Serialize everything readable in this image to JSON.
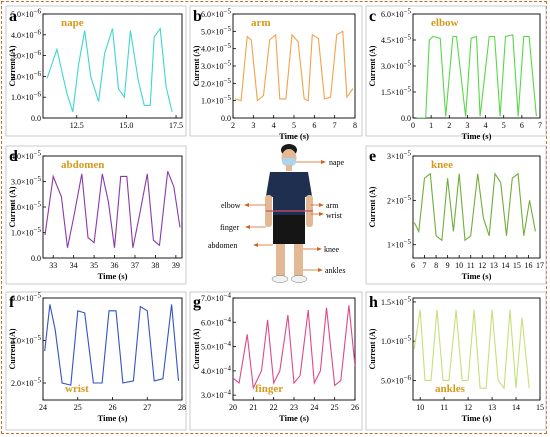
{
  "chart_data": [
    {
      "type": "line",
      "panel": "a",
      "title": "nape",
      "color": "#3fd6d2",
      "xlabel": "",
      "ylabel": "Current (A)",
      "xlim": [
        10.8,
        17.8
      ],
      "ylim": [
        0,
        5e-06
      ],
      "xticks": [
        "12.5",
        "15.0",
        "17.5"
      ],
      "xtickvals": [
        12.5,
        15.0,
        17.5
      ],
      "yticks": [
        "0.0",
        "1.0x10-6",
        "2.0x10-6",
        "3.0x10-6",
        "4.0x10-6",
        "5.0x10-6"
      ],
      "ytickvals": [
        0,
        1e-06,
        2e-06,
        3e-06,
        4e-06,
        5e-06
      ],
      "x": [
        11.0,
        11.5,
        12.0,
        12.3,
        12.6,
        12.9,
        13.2,
        13.6,
        13.9,
        14.3,
        14.6,
        14.9,
        15.2,
        15.6,
        15.9,
        16.2,
        16.4,
        16.7,
        17.0,
        17.3
      ],
      "y": [
        1.9e-06,
        3.3e-06,
        1.2e-06,
        3e-07,
        2.6e-06,
        4.2e-06,
        2e-06,
        8e-07,
        3.1e-06,
        4.3e-06,
        1.4e-06,
        1e-06,
        4.2e-06,
        1.8e-06,
        6e-07,
        6e-07,
        3.9e-06,
        4.3e-06,
        1.5e-06,
        3e-07
      ]
    },
    {
      "type": "line",
      "panel": "b",
      "title": "arm",
      "color": "#f2a24a",
      "xlabel": "Time (s)",
      "ylabel": "Current (A)",
      "xlim": [
        2,
        8
      ],
      "ylim": [
        0,
        6e-05
      ],
      "xticks": [
        "2",
        "3",
        "4",
        "5",
        "6",
        "7",
        "8"
      ],
      "xtickvals": [
        2,
        3,
        4,
        5,
        6,
        7,
        8
      ],
      "yticks": [
        "0.0",
        "1.0x10-5",
        "2.0x10-5",
        "3.0x10-5",
        "4.0x10-5",
        "5.0x10-5",
        "6.0x10-5"
      ],
      "ytickvals": [
        0,
        1e-05,
        2e-05,
        3e-05,
        4e-05,
        5e-05,
        6e-05
      ],
      "x": [
        2.1,
        2.4,
        2.7,
        2.9,
        3.2,
        3.5,
        3.8,
        4.1,
        4.3,
        4.6,
        4.9,
        5.2,
        5.5,
        5.7,
        5.9,
        6.2,
        6.5,
        6.8,
        7.1,
        7.4,
        7.6,
        7.9
      ],
      "y": [
        1.1e-05,
        1e-05,
        4.7e-05,
        4.5e-05,
        1e-05,
        1.3e-05,
        4.5e-05,
        4.8e-05,
        1.1e-05,
        1.1e-05,
        4.8e-05,
        4.4e-05,
        1.1e-05,
        1e-05,
        4.8e-05,
        4.6e-05,
        1.1e-05,
        1.2e-05,
        4.8e-05,
        5e-05,
        1.2e-05,
        1.7e-05
      ]
    },
    {
      "type": "line",
      "panel": "c",
      "title": "elbow",
      "color": "#58d848",
      "xlabel": "Time (s)",
      "ylabel": "Current (A)",
      "xlim": [
        0,
        7
      ],
      "ylim": [
        0,
        6e-05
      ],
      "xticks": [
        "0",
        "1",
        "2",
        "3",
        "4",
        "5",
        "6",
        "7"
      ],
      "xtickvals": [
        0,
        1,
        2,
        3,
        4,
        5,
        6,
        7
      ],
      "yticks": [
        "0.0",
        "1.5x10-5",
        "3.0x10-5",
        "4.5x10-5",
        "6.0x10-5"
      ],
      "ytickvals": [
        0,
        1.5e-05,
        3e-05,
        4.5e-05,
        6e-05
      ],
      "x": [
        0.2,
        0.7,
        0.9,
        1.1,
        1.5,
        1.8,
        2.2,
        2.4,
        2.9,
        3.2,
        3.5,
        3.7,
        4.2,
        4.5,
        4.8,
        5.1,
        5.5,
        5.8,
        6.1,
        6.4,
        6.8
      ],
      "y": [
        0,
        0,
        4.5e-05,
        4.7e-05,
        4.6e-05,
        1e-06,
        4.7e-05,
        4.7e-05,
        1e-06,
        4.6e-05,
        4.7e-05,
        1e-06,
        4.7e-05,
        4.7e-05,
        1e-06,
        4.7e-05,
        4.8e-05,
        1e-06,
        4.7e-05,
        4.7e-05,
        1e-06
      ]
    },
    {
      "type": "line",
      "panel": "d",
      "title": "abdomen",
      "color": "#8a3aa8",
      "xlabel": "Time (s)",
      "ylabel": "Current (A)",
      "xlim": [
        32.5,
        39.3
      ],
      "ylim": [
        0,
        4e-05
      ],
      "xticks": [
        "33",
        "34",
        "35",
        "36",
        "37",
        "38",
        "39"
      ],
      "xtickvals": [
        33,
        34,
        35,
        36,
        37,
        38,
        39
      ],
      "yticks": [
        "0.0",
        "1.0x10-5",
        "2.0x10-5",
        "3.0x10-5",
        "4.0x10-5"
      ],
      "ytickvals": [
        0,
        1e-05,
        2e-05,
        3e-05,
        4e-05
      ],
      "x": [
        32.6,
        33.0,
        33.4,
        33.7,
        34.0,
        34.4,
        34.7,
        35.0,
        35.4,
        35.7,
        36.0,
        36.3,
        36.6,
        36.9,
        37.2,
        37.6,
        37.9,
        38.2,
        38.6,
        38.9,
        39.2
      ],
      "y": [
        9e-06,
        3.2e-05,
        2.4e-05,
        4e-06,
        1.6e-05,
        3.3e-05,
        8e-06,
        6e-06,
        3.3e-05,
        2.2e-05,
        4e-06,
        3.2e-05,
        3.2e-05,
        4e-06,
        1.6e-05,
        3.3e-05,
        7e-06,
        5e-06,
        3.4e-05,
        2.8e-05,
        1.2e-05
      ]
    },
    {
      "type": "line",
      "panel": "e",
      "title": "knee",
      "color": "#6fae3a",
      "xlabel": "Time (s)",
      "ylabel": "Current (A)",
      "xlim": [
        6,
        17
      ],
      "ylim": [
        7e-06,
        3e-05
      ],
      "xticks": [
        "6",
        "7",
        "8",
        "9",
        "10",
        "11",
        "12",
        "13",
        "14",
        "15",
        "16",
        "17"
      ],
      "xtickvals": [
        6,
        7,
        8,
        9,
        10,
        11,
        12,
        13,
        14,
        15,
        16,
        17
      ],
      "yticks": [
        "1x10-5",
        "2x10-5",
        "3x10-5"
      ],
      "ytickvals": [
        1e-05,
        2e-05,
        3e-05
      ],
      "x": [
        6.1,
        6.5,
        7.0,
        7.5,
        8.0,
        8.5,
        9.0,
        9.5,
        10.0,
        10.5,
        11.0,
        11.6,
        12.1,
        12.6,
        13.1,
        13.6,
        14.1,
        14.6,
        15.1,
        15.6,
        16.1,
        16.6
      ],
      "y": [
        1.5e-05,
        1.3e-05,
        2.5e-05,
        2.6e-05,
        1.2e-05,
        1.1e-05,
        2.5e-05,
        1.3e-05,
        2.6e-05,
        1.1e-05,
        1.2e-05,
        2.6e-05,
        1.6e-05,
        1.2e-05,
        2.6e-05,
        2.4e-05,
        1.2e-05,
        2.5e-05,
        2.6e-05,
        1.2e-05,
        2e-05,
        1.3e-05
      ]
    },
    {
      "type": "line",
      "panel": "f",
      "title": "wrist",
      "color": "#3452c8",
      "xlabel": "Time (s)",
      "ylabel": "Current (A)",
      "xlim": [
        24,
        28
      ],
      "ylim": [
        1.2e-05,
        6e-05
      ],
      "xticks": [
        "24",
        "25",
        "26",
        "27",
        "28"
      ],
      "xtickvals": [
        24,
        25,
        26,
        27,
        28
      ],
      "yticks": [
        "2.0x10-5",
        "4.0x10-5",
        "6.0x10-5"
      ],
      "ytickvals": [
        2e-05,
        4e-05,
        6e-05
      ],
      "x": [
        24.05,
        24.2,
        24.35,
        24.55,
        24.8,
        25.0,
        25.2,
        25.45,
        25.7,
        25.9,
        26.1,
        26.3,
        26.6,
        26.8,
        27.0,
        27.2,
        27.45,
        27.7,
        27.9
      ],
      "y": [
        3.5e-05,
        5.7e-05,
        4.5e-05,
        2e-05,
        1.9e-05,
        5.4e-05,
        5.3e-05,
        2e-05,
        2e-05,
        5.4e-05,
        5.4e-05,
        2e-05,
        2.1e-05,
        5.6e-05,
        5.4e-05,
        2.1e-05,
        2.2e-05,
        5.7e-05,
        2.1e-05
      ]
    },
    {
      "type": "line",
      "panel": "g",
      "title": "finger",
      "color": "#e0488a",
      "xlabel": "Time (s)",
      "ylabel": "Current (A)",
      "xlim": [
        20,
        26
      ],
      "ylim": [
        0.00028,
        0.0007
      ],
      "xticks": [
        "20",
        "21",
        "22",
        "23",
        "24",
        "25",
        "26"
      ],
      "xtickvals": [
        20,
        21,
        22,
        23,
        24,
        25,
        26
      ],
      "yticks": [
        "3.0x10-4",
        "4.0x10-4",
        "5.0x10-4",
        "6.0x10-4",
        "7.0x10-4"
      ],
      "ytickvals": [
        0.0003,
        0.0004,
        0.0005,
        0.0006,
        0.0007
      ],
      "x": [
        20.0,
        20.3,
        20.7,
        21.0,
        21.4,
        21.7,
        22.0,
        22.3,
        22.7,
        23.0,
        23.3,
        23.7,
        24.0,
        24.3,
        24.6,
        25.0,
        25.3,
        25.7,
        26.0
      ],
      "y": [
        0.00037,
        0.00035,
        0.00055,
        0.00033,
        0.0004,
        0.00061,
        0.00035,
        0.0004,
        0.00063,
        0.00035,
        0.00038,
        0.00065,
        0.00035,
        0.0004,
        0.00066,
        0.00034,
        0.00036,
        0.00067,
        0.00042
      ]
    },
    {
      "type": "line",
      "panel": "h",
      "title": "ankles",
      "color": "#c5e07a",
      "xlabel": "Time (s)",
      "ylabel": "Current (A)",
      "xlim": [
        9.7,
        15
      ],
      "ylim": [
        2.5e-06,
        1.55e-05
      ],
      "xticks": [
        "10",
        "11",
        "12",
        "13",
        "14",
        "15"
      ],
      "xtickvals": [
        10,
        11,
        12,
        13,
        14,
        15
      ],
      "yticks": [
        "5.0x10-6",
        "1.0x10-5",
        "1.5x10-5"
      ],
      "ytickvals": [
        5e-06,
        1e-05,
        1.5e-05
      ],
      "x": [
        9.75,
        10.0,
        10.2,
        10.45,
        10.7,
        10.95,
        11.2,
        11.5,
        11.75,
        12.0,
        12.25,
        12.5,
        12.75,
        13.0,
        13.25,
        13.5,
        13.75,
        14.0,
        14.25,
        14.55
      ],
      "y": [
        9e-06,
        1.4e-05,
        5e-06,
        5e-06,
        1.4e-05,
        5e-06,
        5e-06,
        1.4e-05,
        5e-06,
        5e-06,
        1.4e-05,
        4e-06,
        4e-06,
        1.4e-05,
        5e-06,
        4e-06,
        1.4e-05,
        4e-06,
        1.3e-05,
        4e-06
      ]
    }
  ],
  "center": {
    "labels": {
      "nape": "nape",
      "elbow": "elbow",
      "arm": "arm",
      "wrist": "wrist",
      "finger": "finger",
      "abdomen": "abdomen",
      "knee": "knee",
      "ankles": "ankles"
    }
  },
  "colors": {
    "frame": "#c96b2c",
    "title": "#d49a1a",
    "arrow": "#d0641e"
  }
}
